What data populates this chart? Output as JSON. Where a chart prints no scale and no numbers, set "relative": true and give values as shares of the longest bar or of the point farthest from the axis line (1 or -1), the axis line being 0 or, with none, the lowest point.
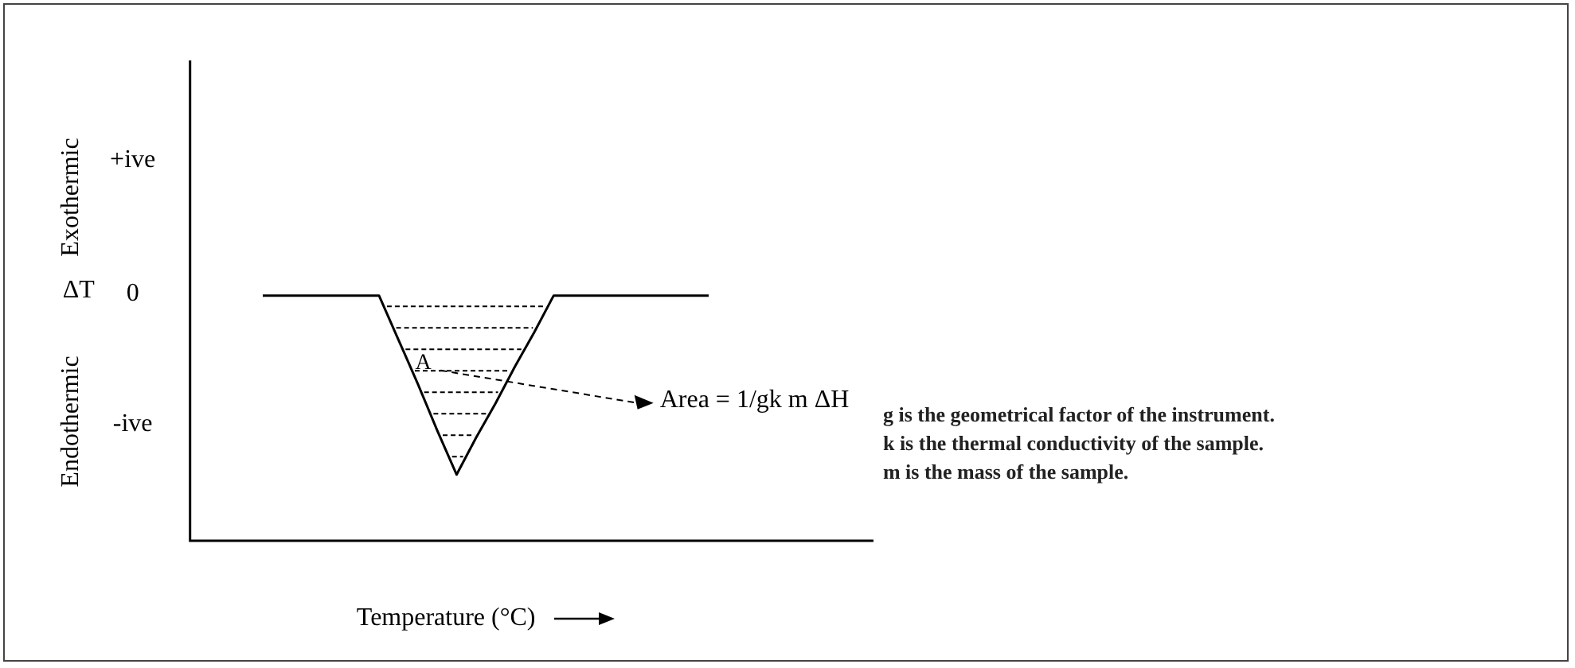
{
  "chart_data": {
    "type": "line",
    "xlabel": "Temperature (°C)",
    "categories": [
      null,
      null,
      null,
      null,
      null,
      null,
      null,
      null,
      null,
      null,
      null,
      null,
      null,
      null,
      null,
      null,
      null,
      null,
      null,
      null,
      null,
      null,
      null,
      null
    ],
    "series": [
      {
        "color": "#000000",
        "values": [
          1,
          1,
          1,
          1,
          1,
          1,
          1,
          0.82,
          0.64,
          0.45,
          0.27,
          0.42,
          0.56,
          0.71,
          0.85,
          1,
          1,
          1,
          1,
          1,
          1,
          1,
          1,
          1
        ]
      }
    ],
    "relative": true,
    "grid": false,
    "legend": false,
    "marker": "none",
    "line_style": "solid",
    "annotations": [
      "Exothermic",
      "Endothermic",
      "ΔT",
      "+ive",
      "0",
      "-ive",
      "A",
      "Area = 1/gk m ΔH",
      "g is the geometrical factor of the instrument.",
      "k is the thermal conductivity of the sample.",
      "m is the mass of the sample."
    ]
  }
}
